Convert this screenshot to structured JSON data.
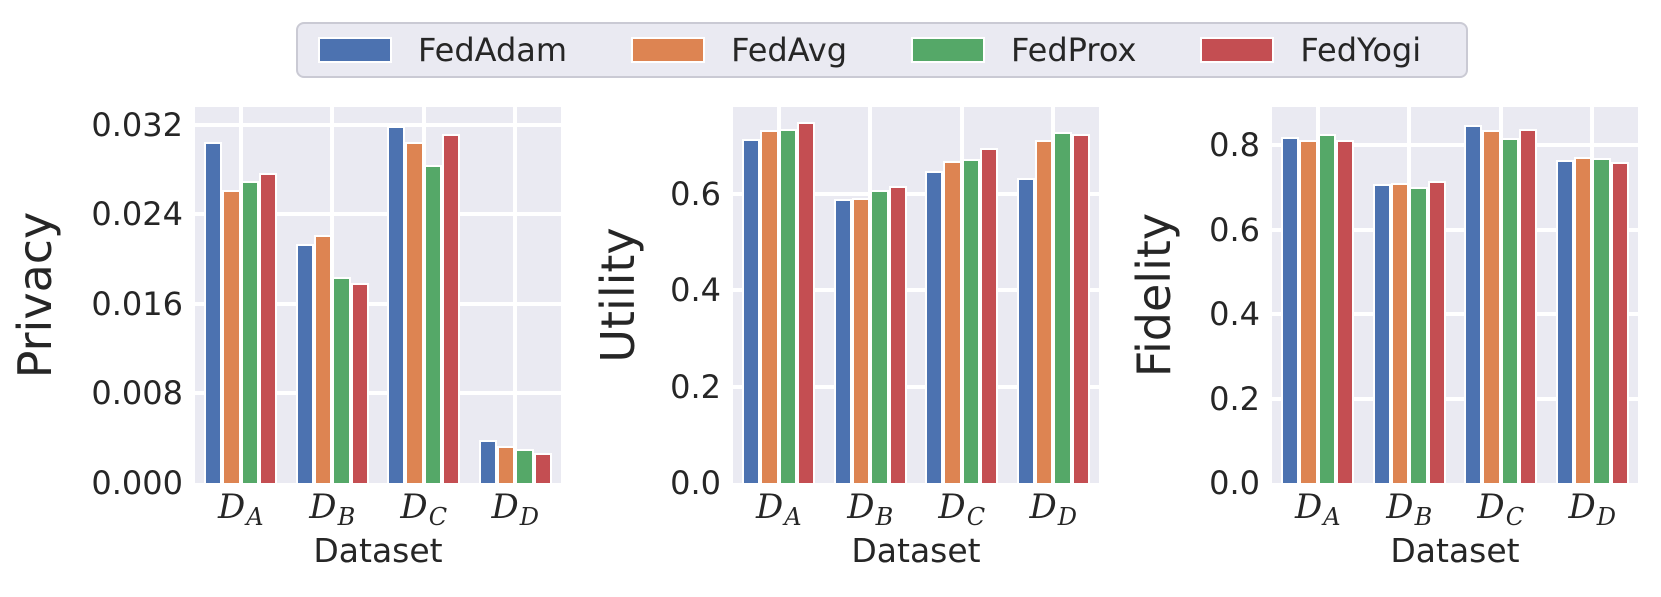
{
  "legend": {
    "items": [
      {
        "label": "FedAdam",
        "color": "#4C72B0",
        "icon": "fedadam-swatch-icon"
      },
      {
        "label": "FedAvg",
        "color": "#DD8452",
        "icon": "fedavg-swatch-icon"
      },
      {
        "label": "FedProx",
        "color": "#55A868",
        "icon": "fedprox-swatch-icon"
      },
      {
        "label": "FedYogi",
        "color": "#C44E52",
        "icon": "fedyogi-swatch-icon"
      }
    ],
    "position": "top-center",
    "orientation": "horizontal"
  },
  "style": {
    "axes_background": "#EAEAF2",
    "grid_color": "#FFFFFF",
    "bar_edge_color": "#FFFFFF",
    "text_color": "#262626",
    "legend_background": "#EAEAF2",
    "legend_border_color": "#CACAD4"
  },
  "chart_data": [
    {
      "type": "bar",
      "title": "",
      "ylabel": "Privacy",
      "xlabel": "Dataset",
      "grid": true,
      "legend_position": "top",
      "categories": [
        {
          "base": "D",
          "sub": "A"
        },
        {
          "base": "D",
          "sub": "B"
        },
        {
          "base": "D",
          "sub": "C"
        },
        {
          "base": "D",
          "sub": "D"
        }
      ],
      "series": [
        {
          "name": "FedAdam",
          "color": "#4C72B0",
          "values": [
            0.0305,
            0.0214,
            0.0319,
            0.0038
          ]
        },
        {
          "name": "FedAvg",
          "color": "#DD8452",
          "values": [
            0.0262,
            0.0222,
            0.0305,
            0.0033
          ]
        },
        {
          "name": "FedProx",
          "color": "#55A868",
          "values": [
            0.027,
            0.0184,
            0.0284,
            0.003
          ]
        },
        {
          "name": "FedYogi",
          "color": "#C44E52",
          "values": [
            0.0277,
            0.0179,
            0.0312,
            0.0027
          ]
        }
      ],
      "ylim": [
        0,
        0.0336
      ],
      "yticks": [
        0,
        0.008,
        0.016,
        0.024,
        0.032
      ],
      "ytick_labels": [
        "0.000",
        "0.008",
        "0.016",
        "0.024",
        "0.032"
      ]
    },
    {
      "type": "bar",
      "title": "",
      "ylabel": "Utility",
      "xlabel": "Dataset",
      "grid": true,
      "legend_position": "top",
      "categories": [
        {
          "base": "D",
          "sub": "A"
        },
        {
          "base": "D",
          "sub": "B"
        },
        {
          "base": "D",
          "sub": "C"
        },
        {
          "base": "D",
          "sub": "D"
        }
      ],
      "series": [
        {
          "name": "FedAdam",
          "color": "#4C72B0",
          "values": [
            0.714,
            0.59,
            0.648,
            0.633
          ]
        },
        {
          "name": "FedAvg",
          "color": "#DD8452",
          "values": [
            0.732,
            0.591,
            0.667,
            0.711
          ]
        },
        {
          "name": "FedProx",
          "color": "#55A868",
          "values": [
            0.734,
            0.607,
            0.673,
            0.728
          ]
        },
        {
          "name": "FedYogi",
          "color": "#C44E52",
          "values": [
            0.749,
            0.616,
            0.694,
            0.723
          ]
        }
      ],
      "ylim": [
        0,
        0.78
      ],
      "yticks": [
        0,
        0.2,
        0.4,
        0.6
      ],
      "ytick_labels": [
        "0.0",
        "0.2",
        "0.4",
        "0.6"
      ]
    },
    {
      "type": "bar",
      "title": "",
      "ylabel": "Fidelity",
      "xlabel": "Dataset",
      "grid": true,
      "legend_position": "top",
      "categories": [
        {
          "base": "D",
          "sub": "A"
        },
        {
          "base": "D",
          "sub": "B"
        },
        {
          "base": "D",
          "sub": "C"
        },
        {
          "base": "D",
          "sub": "D"
        }
      ],
      "series": [
        {
          "name": "FedAdam",
          "color": "#4C72B0",
          "values": [
            0.819,
            0.707,
            0.847,
            0.764
          ]
        },
        {
          "name": "FedAvg",
          "color": "#DD8452",
          "values": [
            0.813,
            0.711,
            0.835,
            0.772
          ]
        },
        {
          "name": "FedProx",
          "color": "#55A868",
          "values": [
            0.827,
            0.701,
            0.816,
            0.77
          ]
        },
        {
          "name": "FedYogi",
          "color": "#C44E52",
          "values": [
            0.811,
            0.714,
            0.837,
            0.761
          ]
        }
      ],
      "ylim": [
        0,
        0.89
      ],
      "yticks": [
        0,
        0.2,
        0.4,
        0.6,
        0.8
      ],
      "ytick_labels": [
        "0.0",
        "0.2",
        "0.4",
        "0.6",
        "0.8"
      ]
    }
  ]
}
